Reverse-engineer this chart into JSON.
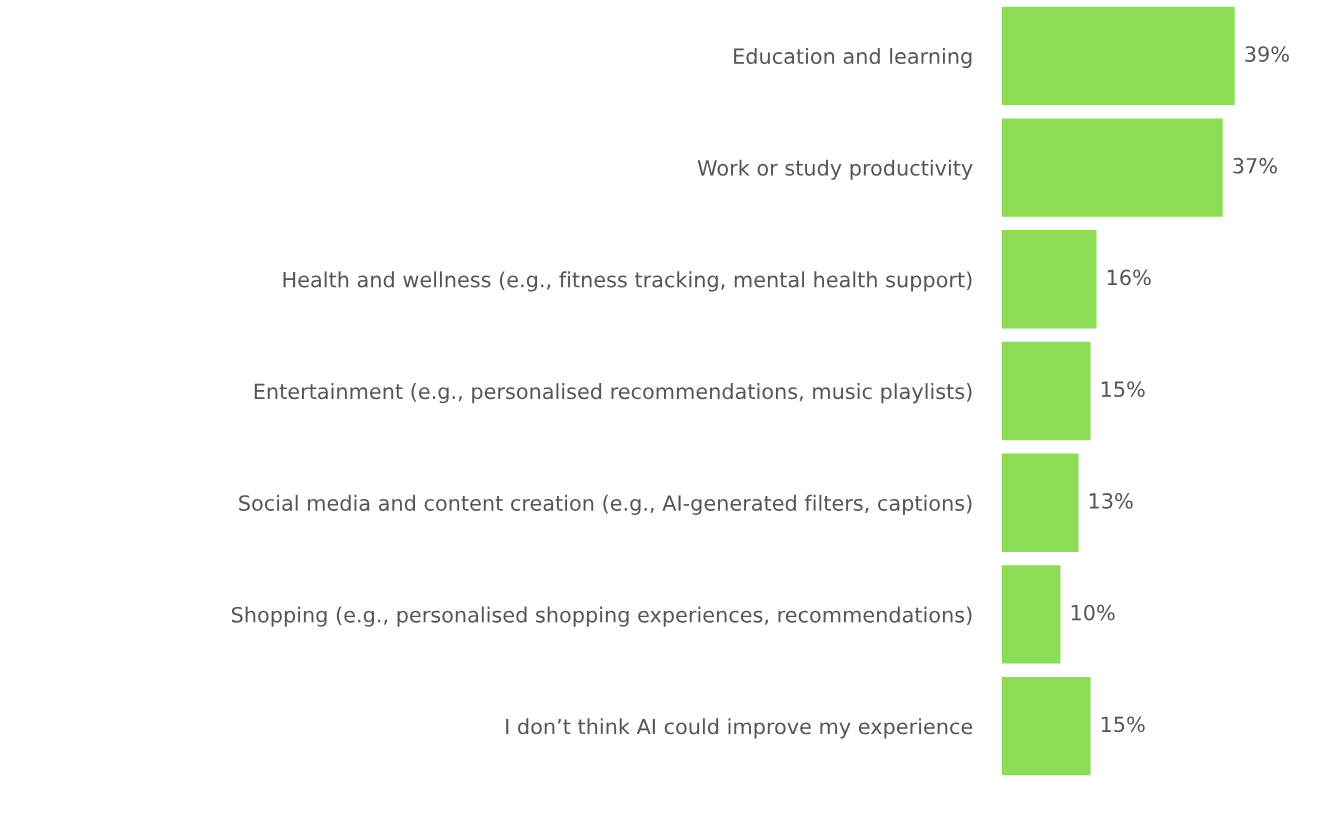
{
  "chart_data": {
    "type": "bar",
    "orientation": "horizontal",
    "categories": [
      "Education and learning",
      "Work or study productivity",
      "Health and wellness (e.g., fitness tracking, mental health support)",
      "Entertainment (e.g., personalised recommendations, music playlists)",
      "Social media and content creation (e.g., AI-generated filters, captions)",
      "Shopping (e.g., personalised shopping experiences, recommendations)",
      "I don’t think AI could improve my experience"
    ],
    "values": [
      39,
      37,
      16,
      15,
      13,
      10,
      15
    ],
    "value_labels": [
      "39%",
      "37%",
      "16%",
      "15%",
      "13%",
      "10%",
      "15%"
    ],
    "color": "#8cdc55",
    "grid": false,
    "legend": false
  }
}
